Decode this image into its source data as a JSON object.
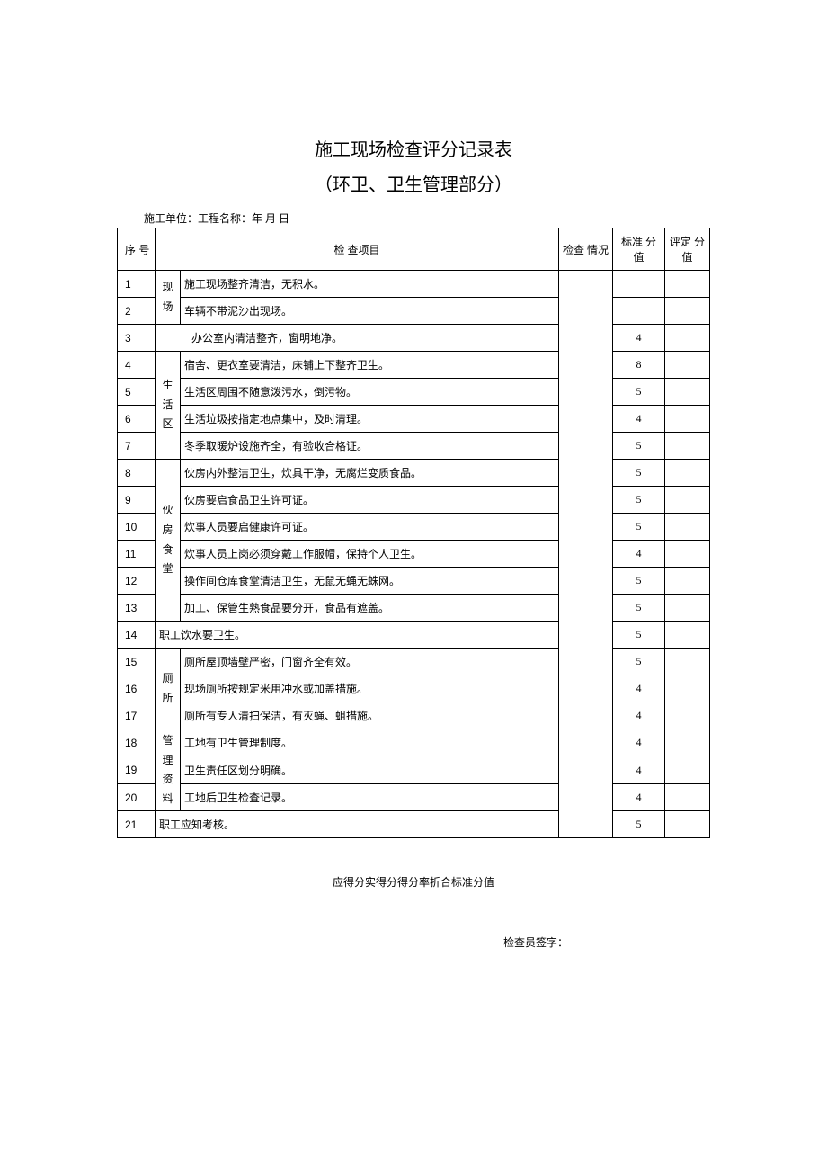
{
  "title": "施工现场检查评分记录表",
  "subtitle": "（环卫、卫生管理部分）",
  "meta": "施工单位：工程名称：年 月 日",
  "headers": {
    "seq": "序 号",
    "item": "检 查项目",
    "check": "检查 情况",
    "standard": "标准 分值",
    "eval": "评定 分值"
  },
  "categories": {
    "xianchang": "现场",
    "shenghuo": "生活区",
    "huofang": "伙房食堂",
    "cesuo": "厕所",
    "guanli": "管理资料"
  },
  "rows": [
    {
      "seq": "1",
      "item": "施工现场整齐清洁，无积水。",
      "std": ""
    },
    {
      "seq": "2",
      "item": "车辆不带泥沙出现场。",
      "std": ""
    },
    {
      "seq": "3",
      "item": "办公室内清洁整齐，窗明地净。",
      "std": "4"
    },
    {
      "seq": "4",
      "item": "宿舍、更衣室要清洁，床铺上下整齐卫生。",
      "std": "8"
    },
    {
      "seq": "5",
      "item": "生活区周围不随意泼污水，倒污物。",
      "std": "5"
    },
    {
      "seq": "6",
      "item": "生活垃圾按指定地点集中，及时清理。",
      "std": "4"
    },
    {
      "seq": "7",
      "item": "冬季取暖炉设施齐全，有验收合格证。",
      "std": "5"
    },
    {
      "seq": "8",
      "item": "伙房内外整洁卫生，炊具干净，无腐烂变质食品。",
      "std": "5"
    },
    {
      "seq": "9",
      "item": "伙房要启食品卫生许可证。",
      "std": "5"
    },
    {
      "seq": "10",
      "item": "炊事人员要启健康许可证。",
      "std": "5"
    },
    {
      "seq": "11",
      "item": "炊事人员上岗必须穿戴工作服帽，保持个人卫生。",
      "std": "4"
    },
    {
      "seq": "12",
      "item": "操作间仓库食堂清洁卫生，无鼠无蝇无蛛网。",
      "std": "5"
    },
    {
      "seq": "13",
      "item": "加工、保管生熟食品要分开，食品有遮盖。",
      "std": "5"
    },
    {
      "seq": "14",
      "item": "职工饮水要卫生。",
      "std": "5"
    },
    {
      "seq": "15",
      "item": "厕所屋顶墙壁严密，门窗齐全有效。",
      "std": "5"
    },
    {
      "seq": "16",
      "item": "现场厕所按规定米用冲水或加盖措施。",
      "std": "4"
    },
    {
      "seq": "17",
      "item": "厕所有专人清扫保洁，有灭蝇、蛆措施。",
      "std": "4"
    },
    {
      "seq": "18",
      "item": "工地有卫生管理制度。",
      "std": "4"
    },
    {
      "seq": "19",
      "item": "卫生责任区划分明确。",
      "std": "4"
    },
    {
      "seq": "20",
      "item": "工地后卫生检查记录。",
      "std": "4"
    },
    {
      "seq": "21",
      "item": "职工应知考核。",
      "std": "5"
    }
  ],
  "footer1": "应得分实得分得分率折合标准分值",
  "footer2": "检查员签字："
}
